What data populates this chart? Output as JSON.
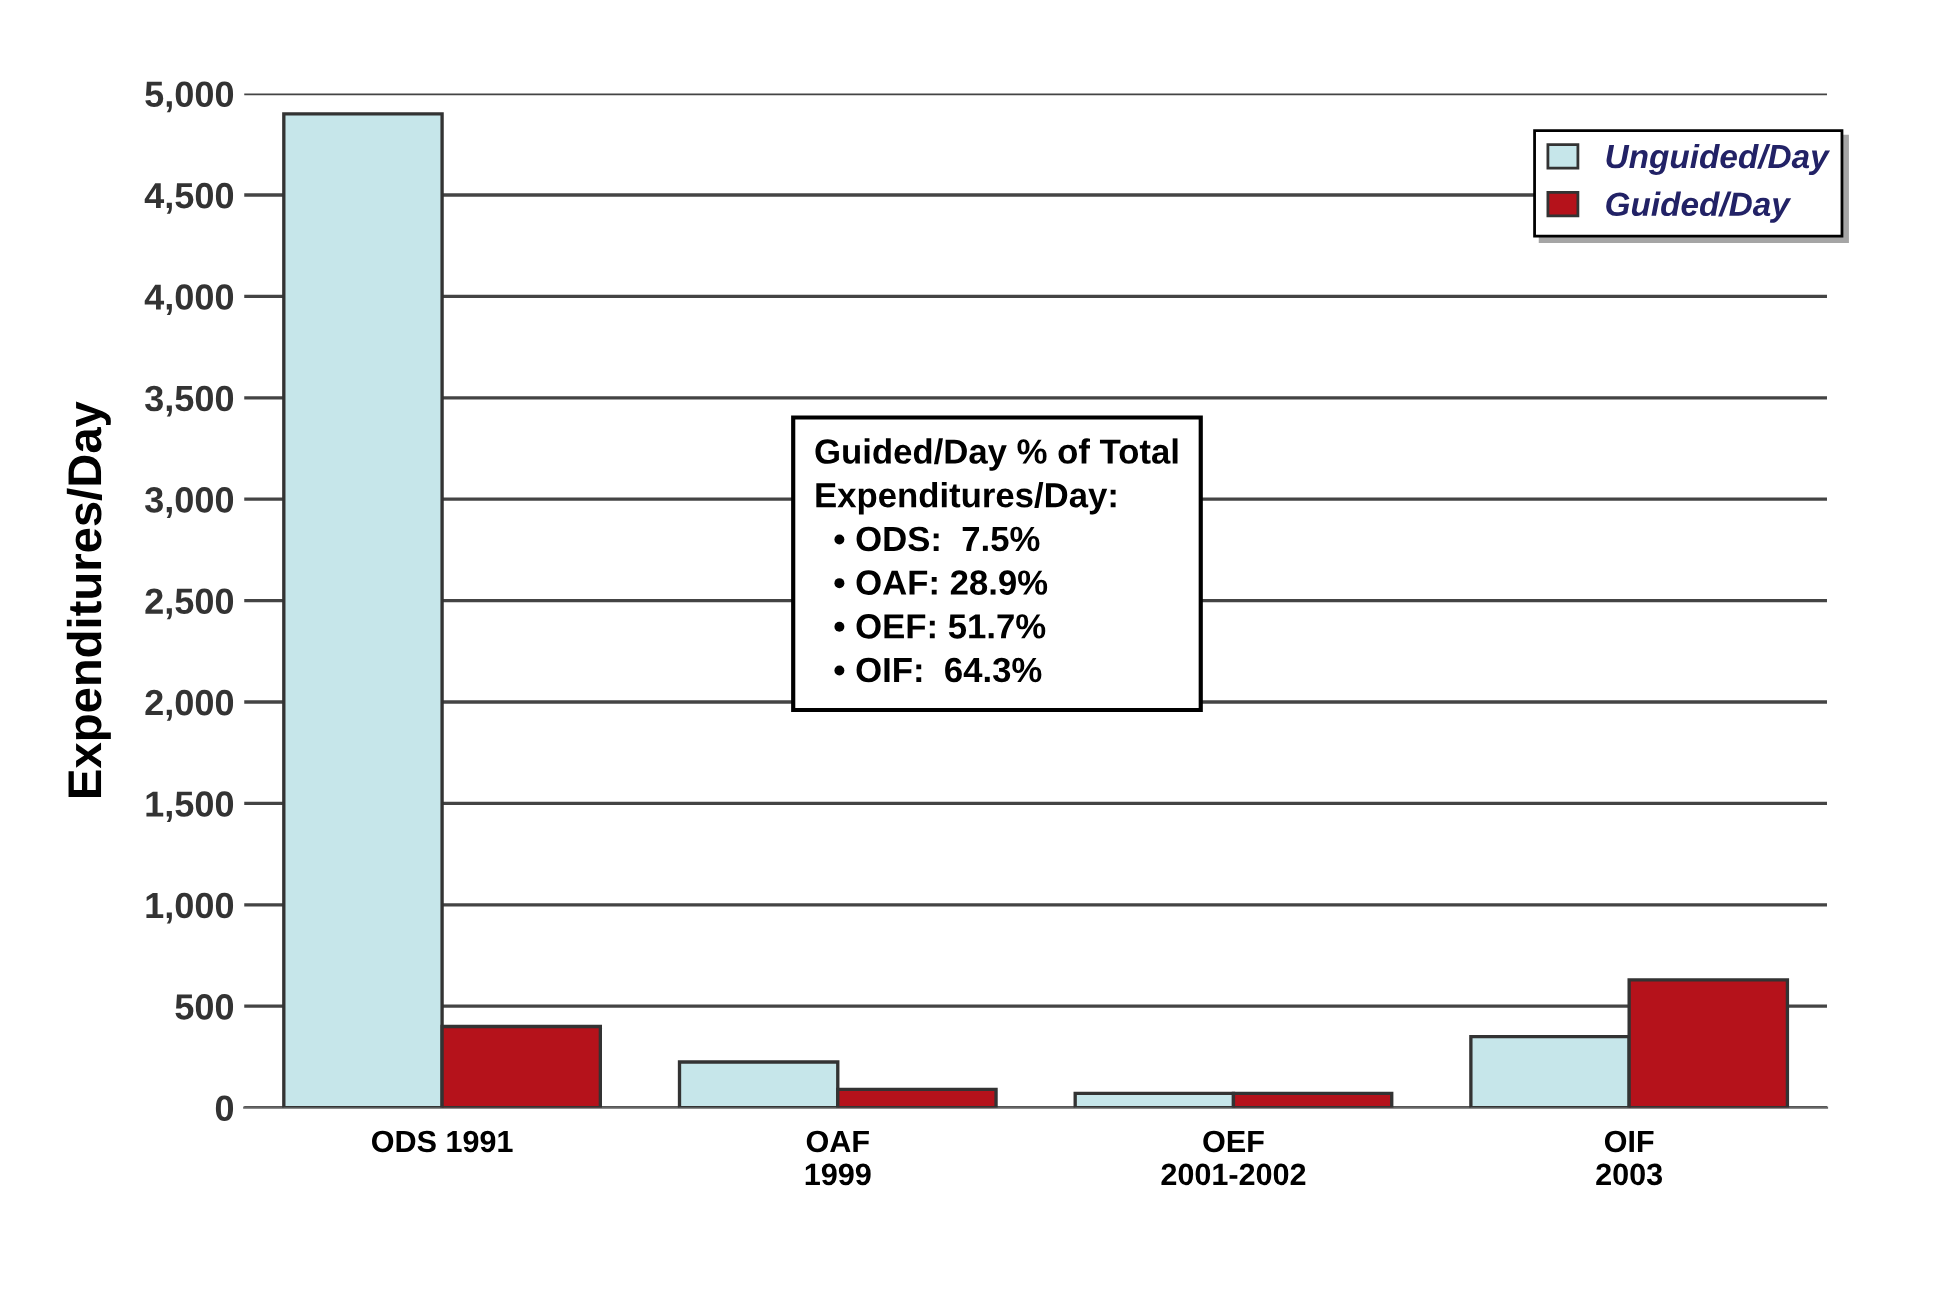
{
  "chart_data": {
    "type": "bar",
    "ylabel": "Expenditures/Day",
    "categories": [
      "ODS 1991",
      "OAF\n1999",
      "OEF\n2001-2002",
      "OIF\n2003"
    ],
    "series": [
      {
        "name": "Unguided/Day",
        "color": "#c6e6ea",
        "values": [
          4900,
          225,
          70,
          350
        ]
      },
      {
        "name": "Guided/Day",
        "color": "#b5121b",
        "values": [
          400,
          90,
          70,
          630
        ]
      }
    ],
    "ylim": [
      0,
      5000
    ],
    "yticks": [
      {
        "value": 0,
        "label": "0"
      },
      {
        "value": 500,
        "label": "500"
      },
      {
        "value": 1000,
        "label": "1,000"
      },
      {
        "value": 1500,
        "label": "1,500"
      },
      {
        "value": 2000,
        "label": "2,000"
      },
      {
        "value": 2500,
        "label": "2,500"
      },
      {
        "value": 3000,
        "label": "3,000"
      },
      {
        "value": 3500,
        "label": "3,500"
      },
      {
        "value": 4000,
        "label": "4,000"
      },
      {
        "value": 4500,
        "label": "4,500"
      },
      {
        "value": 5000,
        "label": "5,000"
      }
    ],
    "grid": "y",
    "legend": "top right",
    "annotations": [
      "Guided/Day % of Total\nExpenditures/Day:\n  • ODS:  7.5%\n  • OAF: 28.9%\n  • OEF: 51.7%\n  • OIF:  64.3%"
    ]
  }
}
